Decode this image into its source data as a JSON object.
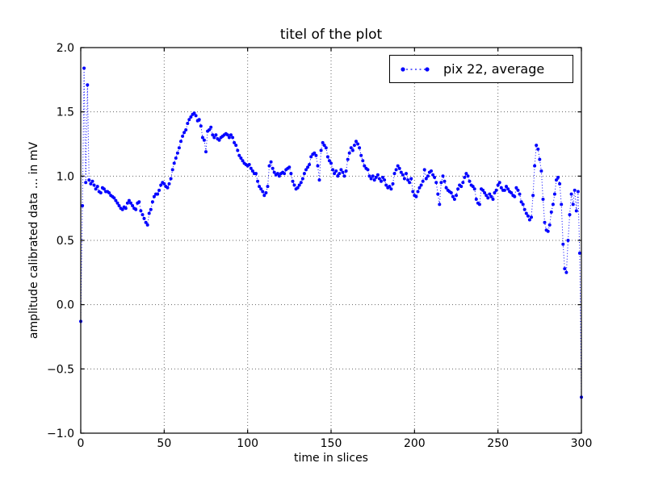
{
  "title": "titel of the plot",
  "legend": {
    "entries": [
      "pix 22, average"
    ],
    "position": "upper right"
  },
  "colors": {
    "series": "#0000ff",
    "grid": "#666666",
    "frame": "#000000",
    "background": "#ffffff",
    "text": "#000000"
  },
  "chart_data": {
    "type": "line",
    "title": "titel of the plot",
    "xlabel": "time in slices",
    "ylabel": "amplitude calibrated data ... in mV",
    "xlim": [
      0,
      300
    ],
    "ylim": [
      -1.0,
      2.0
    ],
    "xticks": [
      0,
      50,
      100,
      150,
      200,
      250,
      300
    ],
    "yticks": [
      -1.0,
      -0.5,
      0.0,
      0.5,
      1.0,
      1.5,
      2.0
    ],
    "xtick_labels": [
      "0",
      "50",
      "100",
      "150",
      "200",
      "250",
      "300"
    ],
    "ytick_labels": [
      "−1.0",
      "−0.5",
      "0.0",
      "0.5",
      "1.0",
      "1.5",
      "2.0"
    ],
    "grid": true,
    "grid_style": "dotted",
    "legend_position": "upper right",
    "series": [
      {
        "name": "pix 22, average",
        "color": "#0000ff",
        "marker": "circle",
        "linestyle": "dotted",
        "x_start": 0,
        "x_step": 1,
        "values": [
          -0.13,
          0.77,
          1.84,
          0.95,
          1.71,
          0.97,
          0.94,
          0.96,
          0.93,
          0.9,
          0.92,
          0.88,
          0.87,
          0.91,
          0.9,
          0.88,
          0.88,
          0.87,
          0.85,
          0.84,
          0.83,
          0.81,
          0.79,
          0.77,
          0.75,
          0.74,
          0.76,
          0.75,
          0.79,
          0.81,
          0.79,
          0.77,
          0.75,
          0.74,
          0.79,
          0.8,
          0.73,
          0.7,
          0.67,
          0.64,
          0.62,
          0.71,
          0.74,
          0.8,
          0.84,
          0.86,
          0.86,
          0.89,
          0.93,
          0.95,
          0.94,
          0.92,
          0.91,
          0.94,
          0.98,
          1.05,
          1.1,
          1.14,
          1.18,
          1.22,
          1.27,
          1.31,
          1.34,
          1.36,
          1.41,
          1.44,
          1.46,
          1.48,
          1.49,
          1.47,
          1.43,
          1.44,
          1.39,
          1.3,
          1.28,
          1.19,
          1.35,
          1.36,
          1.38,
          1.32,
          1.3,
          1.32,
          1.29,
          1.28,
          1.3,
          1.31,
          1.32,
          1.33,
          1.32,
          1.3,
          1.32,
          1.3,
          1.26,
          1.24,
          1.2,
          1.16,
          1.14,
          1.12,
          1.1,
          1.09,
          1.08,
          1.09,
          1.06,
          1.04,
          1.02,
          1.02,
          0.96,
          0.92,
          0.9,
          0.88,
          0.85,
          0.87,
          0.92,
          1.08,
          1.11,
          1.06,
          1.03,
          1.01,
          1.02,
          1.0,
          1.02,
          1.03,
          1.02,
          1.05,
          1.06,
          1.07,
          1.02,
          0.96,
          0.93,
          0.9,
          0.91,
          0.93,
          0.95,
          0.98,
          1.02,
          1.05,
          1.07,
          1.09,
          1.15,
          1.17,
          1.18,
          1.16,
          1.08,
          0.97,
          1.2,
          1.26,
          1.24,
          1.22,
          1.15,
          1.12,
          1.1,
          1.05,
          1.02,
          1.04,
          1.0,
          1.02,
          1.05,
          1.03,
          1.0,
          1.04,
          1.13,
          1.18,
          1.22,
          1.2,
          1.24,
          1.27,
          1.25,
          1.22,
          1.16,
          1.12,
          1.08,
          1.06,
          1.05,
          1.0,
          0.98,
          1.0,
          0.97,
          0.99,
          1.01,
          0.98,
          0.96,
          0.99,
          0.97,
          0.93,
          0.91,
          0.92,
          0.9,
          0.94,
          1.02,
          1.05,
          1.08,
          1.06,
          1.03,
          1.01,
          0.98,
          1.02,
          0.97,
          0.95,
          0.98,
          0.88,
          0.85,
          0.84,
          0.88,
          0.91,
          0.93,
          0.96,
          1.05,
          0.98,
          1.0,
          1.03,
          1.04,
          1.01,
          0.99,
          0.95,
          0.86,
          0.78,
          0.95,
          1.0,
          0.96,
          0.91,
          0.89,
          0.88,
          0.87,
          0.84,
          0.82,
          0.85,
          0.9,
          0.93,
          0.92,
          0.95,
          0.99,
          1.02,
          1.0,
          0.96,
          0.93,
          0.92,
          0.9,
          0.82,
          0.79,
          0.78,
          0.9,
          0.89,
          0.87,
          0.85,
          0.83,
          0.86,
          0.84,
          0.82,
          0.87,
          0.89,
          0.93,
          0.95,
          0.91,
          0.89,
          0.89,
          0.92,
          0.9,
          0.88,
          0.87,
          0.85,
          0.84,
          0.91,
          0.89,
          0.86,
          0.8,
          0.78,
          0.74,
          0.71,
          0.69,
          0.66,
          0.68,
          0.85,
          1.08,
          1.24,
          1.21,
          1.13,
          1.04,
          0.82,
          0.64,
          0.58,
          0.57,
          0.62,
          0.72,
          0.78,
          0.86,
          0.97,
          0.99,
          0.94,
          0.78,
          0.47,
          0.28,
          0.25,
          0.5,
          0.7,
          0.86,
          0.78,
          0.89,
          0.73,
          0.88,
          0.4,
          -0.72
        ]
      }
    ]
  }
}
